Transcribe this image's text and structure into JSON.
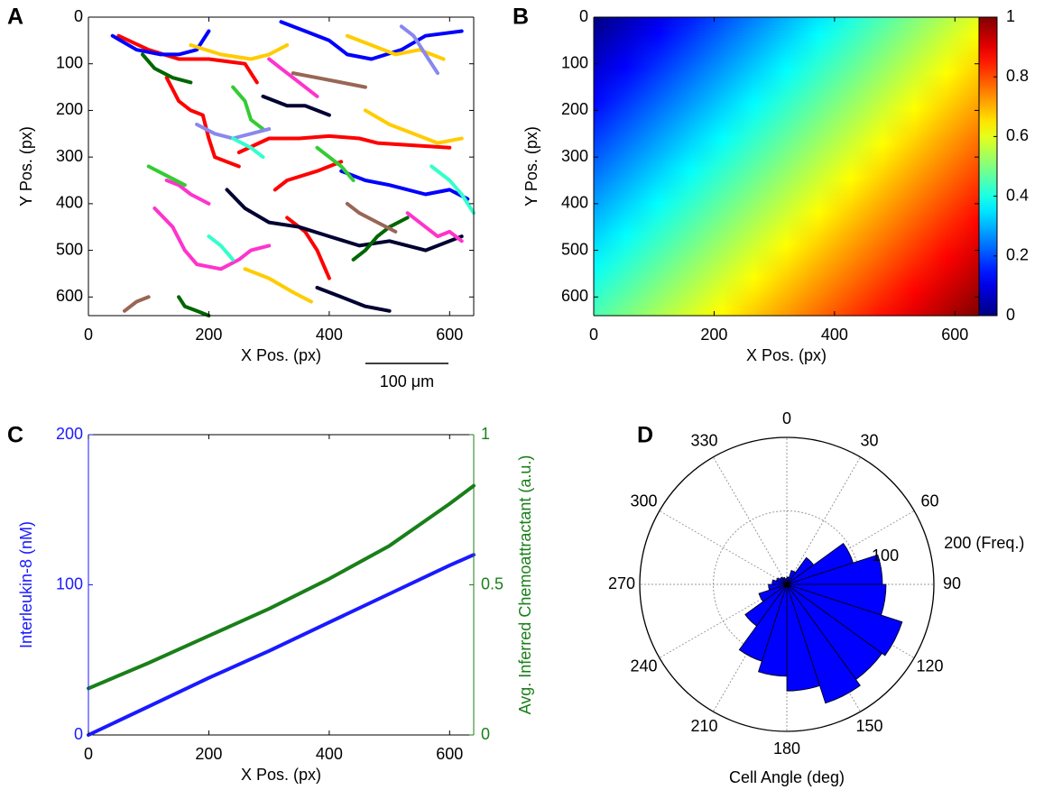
{
  "chart_data": [
    {
      "type": "line",
      "panel": "A",
      "xlabel": "X Pos. (px)",
      "ylabel": "Y Pos. (px)",
      "xlim": [
        0,
        640
      ],
      "ylim": [
        0,
        640
      ],
      "y_inverted": true,
      "xticks": [
        0,
        200,
        400,
        600
      ],
      "yticks": [
        0,
        100,
        200,
        300,
        400,
        500,
        600
      ],
      "line_width": 4,
      "scale_bar": {
        "label": "100 μm",
        "length": 138
      },
      "series": [
        {
          "color": "#ff0000",
          "x": [
            50,
            100,
            150,
            200,
            260,
            280
          ],
          "y": [
            40,
            70,
            90,
            90,
            100,
            140
          ]
        },
        {
          "color": "#ff0000",
          "x": [
            130,
            150,
            170,
            190,
            200,
            210,
            250
          ],
          "y": [
            130,
            180,
            200,
            210,
            260,
            300,
            320
          ]
        },
        {
          "color": "#ff0000",
          "x": [
            250,
            300,
            350,
            400,
            450,
            480,
            600
          ],
          "y": [
            290,
            260,
            260,
            255,
            260,
            270,
            280
          ]
        },
        {
          "color": "#ff0000",
          "x": [
            330,
            360,
            380,
            400
          ],
          "y": [
            430,
            460,
            500,
            560
          ]
        },
        {
          "color": "#ff0000",
          "x": [
            310,
            330,
            380,
            420
          ],
          "y": [
            370,
            350,
            330,
            310
          ]
        },
        {
          "color": "#0000ff",
          "x": [
            40,
            80,
            120,
            150,
            180,
            200
          ],
          "y": [
            40,
            70,
            80,
            80,
            70,
            30
          ]
        },
        {
          "color": "#0000ff",
          "x": [
            320,
            360,
            400,
            430,
            470,
            520,
            560,
            620
          ],
          "y": [
            10,
            30,
            50,
            80,
            90,
            70,
            40,
            30
          ]
        },
        {
          "color": "#0000ff",
          "x": [
            420,
            460,
            500,
            560,
            600,
            630
          ],
          "y": [
            330,
            350,
            360,
            380,
            370,
            390
          ]
        },
        {
          "color": "#000033",
          "x": [
            230,
            260,
            300,
            350,
            400,
            450,
            500,
            560,
            620
          ],
          "y": [
            370,
            410,
            440,
            450,
            470,
            490,
            480,
            500,
            470
          ]
        },
        {
          "color": "#000033",
          "x": [
            290,
            330,
            360,
            400
          ],
          "y": [
            170,
            190,
            190,
            210
          ]
        },
        {
          "color": "#000033",
          "x": [
            380,
            420,
            460,
            500
          ],
          "y": [
            580,
            600,
            620,
            630
          ]
        },
        {
          "color": "#ff33cc",
          "x": [
            110,
            140,
            160,
            180,
            220,
            250,
            270,
            300
          ],
          "y": [
            410,
            450,
            500,
            530,
            540,
            520,
            500,
            490
          ]
        },
        {
          "color": "#ff33cc",
          "x": [
            300,
            320,
            340,
            360,
            380
          ],
          "y": [
            90,
            110,
            130,
            150,
            170
          ]
        },
        {
          "color": "#ff33cc",
          "x": [
            530,
            560,
            580,
            600,
            620
          ],
          "y": [
            420,
            450,
            470,
            460,
            480
          ]
        },
        {
          "color": "#ff33cc",
          "x": [
            130,
            150,
            170,
            200
          ],
          "y": [
            350,
            360,
            380,
            400
          ]
        },
        {
          "color": "#ffcc00",
          "x": [
            170,
            220,
            270,
            300,
            330
          ],
          "y": [
            60,
            80,
            90,
            80,
            60
          ]
        },
        {
          "color": "#ffcc00",
          "x": [
            430,
            470,
            510,
            550,
            590
          ],
          "y": [
            40,
            60,
            80,
            70,
            90
          ]
        },
        {
          "color": "#ffcc00",
          "x": [
            260,
            300,
            340,
            370
          ],
          "y": [
            540,
            560,
            590,
            610
          ]
        },
        {
          "color": "#ffcc00",
          "x": [
            460,
            500,
            540,
            580,
            620
          ],
          "y": [
            200,
            230,
            250,
            270,
            260
          ]
        },
        {
          "color": "#33cc33",
          "x": [
            240,
            260,
            270,
            290
          ],
          "y": [
            150,
            180,
            220,
            240
          ]
        },
        {
          "color": "#33cc33",
          "x": [
            380,
            400,
            420,
            440
          ],
          "y": [
            280,
            300,
            320,
            350
          ]
        },
        {
          "color": "#33cc33",
          "x": [
            100,
            130,
            160
          ],
          "y": [
            320,
            340,
            360
          ]
        },
        {
          "color": "#006600",
          "x": [
            90,
            110,
            140,
            170
          ],
          "y": [
            80,
            110,
            130,
            140
          ]
        },
        {
          "color": "#006600",
          "x": [
            440,
            460,
            480,
            500,
            530
          ],
          "y": [
            520,
            500,
            470,
            450,
            430
          ]
        },
        {
          "color": "#006600",
          "x": [
            150,
            160,
            180,
            200
          ],
          "y": [
            600,
            620,
            630,
            640
          ]
        },
        {
          "color": "#996655",
          "x": [
            60,
            80,
            100
          ],
          "y": [
            630,
            610,
            600
          ]
        },
        {
          "color": "#996655",
          "x": [
            340,
            380,
            420,
            460
          ],
          "y": [
            120,
            130,
            140,
            150
          ]
        },
        {
          "color": "#996655",
          "x": [
            430,
            450,
            480,
            510
          ],
          "y": [
            400,
            420,
            440,
            460
          ]
        },
        {
          "color": "#8888ee",
          "x": [
            180,
            210,
            240,
            270,
            300
          ],
          "y": [
            230,
            250,
            260,
            250,
            240
          ]
        },
        {
          "color": "#8888ee",
          "x": [
            520,
            540,
            560,
            580
          ],
          "y": [
            20,
            40,
            80,
            120
          ]
        },
        {
          "color": "#33ffcc",
          "x": [
            240,
            270,
            290
          ],
          "y": [
            260,
            280,
            300
          ]
        },
        {
          "color": "#33ffcc",
          "x": [
            570,
            600,
            620,
            640
          ],
          "y": [
            320,
            350,
            380,
            420
          ]
        },
        {
          "color": "#33ffcc",
          "x": [
            200,
            220,
            240
          ],
          "y": [
            470,
            490,
            520
          ]
        }
      ]
    },
    {
      "type": "heatmap",
      "panel": "B",
      "xlabel": "X Pos. (px)",
      "ylabel": "Y Pos. (px)",
      "xlim": [
        0,
        640
      ],
      "ylim": [
        0,
        640
      ],
      "y_inverted": true,
      "xticks": [
        0,
        200,
        400,
        600
      ],
      "yticks": [
        0,
        100,
        200,
        300,
        400,
        500,
        600
      ],
      "x": [
        0,
        640
      ],
      "y": [
        0,
        640
      ],
      "z": [
        [
          0,
          0.6
        ],
        [
          0.45,
          1
        ]
      ],
      "colormap": "jet",
      "clim": [
        0,
        1
      ],
      "cticks": [
        0,
        0.2,
        0.4,
        0.6,
        0.8,
        1
      ]
    },
    {
      "type": "line",
      "panel": "C",
      "xlabel": "X Pos. (px)",
      "ylabel": "Interleukin-8 (nM)",
      "y2label": "Avg. Inferred Chemoattractant (a.u.)",
      "xlim": [
        0,
        640
      ],
      "ylim": [
        0,
        200
      ],
      "y2lim": [
        0,
        1
      ],
      "xticks": [
        0,
        200,
        400,
        600
      ],
      "yticks": [
        0,
        100,
        200
      ],
      "y2ticks": [
        0,
        0.5,
        1
      ],
      "line_width": 4,
      "x": [
        0,
        100,
        200,
        300,
        400,
        500,
        600,
        640
      ],
      "series": [
        {
          "color": "#1a1aff",
          "values": [
            0,
            19,
            38,
            56,
            75,
            94,
            113,
            120
          ]
        },
        {
          "color": "#1a7f1a",
          "axis": "y2",
          "values": [
            0.155,
            0.24,
            0.33,
            0.42,
            0.52,
            0.63,
            0.77,
            0.83
          ]
        }
      ]
    },
    {
      "type": "polar_histogram",
      "panel": "D",
      "xlabel": "Cell Angle (deg)",
      "theta_zero": "top",
      "theta_direction": "clockwise",
      "rlim": [
        0,
        200
      ],
      "rticks": [
        100,
        {
          "value": 200,
          "label": "200 (Freq.)"
        }
      ],
      "thetaticks": [
        0,
        30,
        60,
        90,
        120,
        150,
        180,
        210,
        240,
        270,
        300,
        330
      ],
      "color": "#0000ff",
      "bins": [
        0,
        18,
        36,
        54,
        72,
        90,
        108,
        126,
        144,
        162,
        180,
        198,
        216,
        234,
        252,
        270,
        288,
        306,
        324,
        342,
        360
      ],
      "values": [
        10,
        20,
        45,
        95,
        130,
        135,
        165,
        160,
        170,
        145,
        125,
        110,
        70,
        40,
        25,
        20,
        15,
        12,
        10,
        8
      ]
    }
  ]
}
